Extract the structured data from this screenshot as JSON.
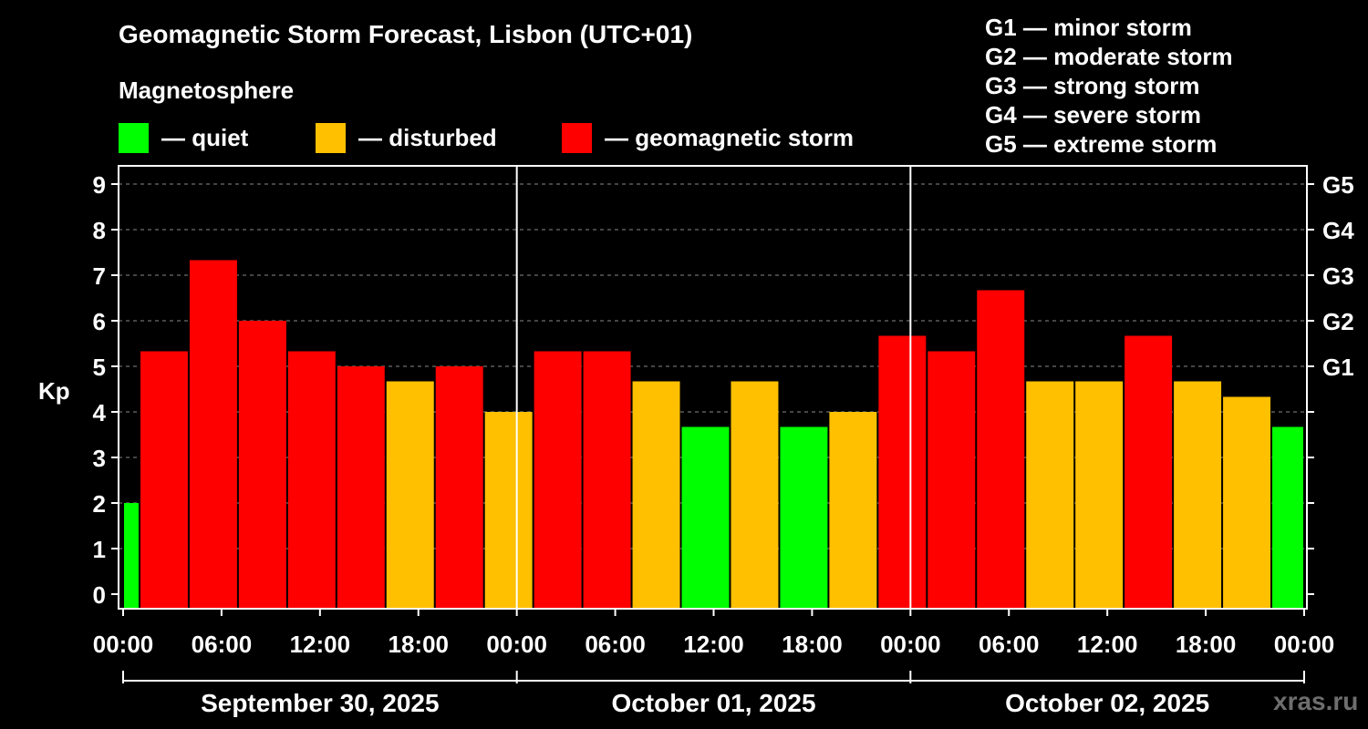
{
  "title": "Geomagnetic Storm Forecast, Lisbon (UTC+01)",
  "legend": {
    "heading": "Magnetosphere",
    "items": [
      {
        "label": "— quiet",
        "color": "#00ff00"
      },
      {
        "label": "— disturbed",
        "color": "#ffc000"
      },
      {
        "label": "— geomagnetic storm",
        "color": "#ff0000"
      }
    ]
  },
  "g_scale": [
    "G1 — minor storm",
    "G2 — moderate storm",
    "G3 — strong storm",
    "G4 — severe storm",
    "G5 — extreme storm"
  ],
  "watermark": "xras.ru",
  "chart_data": {
    "type": "bar",
    "ylabel": "Kp",
    "ylim": [
      0,
      9
    ],
    "y_ticks": [
      0,
      1,
      2,
      3,
      4,
      5,
      6,
      7,
      8,
      9
    ],
    "right_ticks": [
      {
        "value": 5,
        "label": "G1"
      },
      {
        "value": 6,
        "label": "G2"
      },
      {
        "value": 7,
        "label": "G3"
      },
      {
        "value": 8,
        "label": "G4"
      },
      {
        "value": 9,
        "label": "G5"
      }
    ],
    "grid": true,
    "x_tick_labels": [
      "00:00",
      "06:00",
      "12:00",
      "18:00",
      "00:00",
      "06:00",
      "12:00",
      "18:00",
      "00:00",
      "06:00",
      "12:00",
      "18:00",
      "00:00"
    ],
    "days": [
      "September 30, 2025",
      "October 01, 2025",
      "October 02, 2025"
    ],
    "colors": {
      "quiet": "#00ff00",
      "disturbed": "#ffc000",
      "storm": "#ff0000"
    },
    "bars": [
      {
        "start": "2025-09-30 00:00",
        "end": "2025-09-30 01:00",
        "kp": 2.0
      },
      {
        "start": "2025-09-30 01:00",
        "end": "2025-09-30 04:00",
        "kp": 5.33
      },
      {
        "start": "2025-09-30 04:00",
        "end": "2025-09-30 07:00",
        "kp": 7.33
      },
      {
        "start": "2025-09-30 07:00",
        "end": "2025-09-30 10:00",
        "kp": 6.0
      },
      {
        "start": "2025-09-30 10:00",
        "end": "2025-09-30 13:00",
        "kp": 5.33
      },
      {
        "start": "2025-09-30 13:00",
        "end": "2025-09-30 16:00",
        "kp": 5.0
      },
      {
        "start": "2025-09-30 16:00",
        "end": "2025-09-30 19:00",
        "kp": 4.67
      },
      {
        "start": "2025-09-30 19:00",
        "end": "2025-09-30 22:00",
        "kp": 5.0
      },
      {
        "start": "2025-09-30 22:00",
        "end": "2025-10-01 01:00",
        "kp": 4.0
      },
      {
        "start": "2025-10-01 01:00",
        "end": "2025-10-01 04:00",
        "kp": 5.33
      },
      {
        "start": "2025-10-01 04:00",
        "end": "2025-10-01 07:00",
        "kp": 5.33
      },
      {
        "start": "2025-10-01 07:00",
        "end": "2025-10-01 10:00",
        "kp": 4.67
      },
      {
        "start": "2025-10-01 10:00",
        "end": "2025-10-01 13:00",
        "kp": 3.67
      },
      {
        "start": "2025-10-01 13:00",
        "end": "2025-10-01 16:00",
        "kp": 4.67
      },
      {
        "start": "2025-10-01 16:00",
        "end": "2025-10-01 19:00",
        "kp": 3.67
      },
      {
        "start": "2025-10-01 19:00",
        "end": "2025-10-01 22:00",
        "kp": 4.0
      },
      {
        "start": "2025-10-01 22:00",
        "end": "2025-10-02 01:00",
        "kp": 5.67
      },
      {
        "start": "2025-10-02 01:00",
        "end": "2025-10-02 04:00",
        "kp": 5.33
      },
      {
        "start": "2025-10-02 04:00",
        "end": "2025-10-02 07:00",
        "kp": 6.67
      },
      {
        "start": "2025-10-02 07:00",
        "end": "2025-10-02 10:00",
        "kp": 4.67
      },
      {
        "start": "2025-10-02 10:00",
        "end": "2025-10-02 13:00",
        "kp": 4.67
      },
      {
        "start": "2025-10-02 13:00",
        "end": "2025-10-02 16:00",
        "kp": 5.67
      },
      {
        "start": "2025-10-02 16:00",
        "end": "2025-10-02 19:00",
        "kp": 4.67
      },
      {
        "start": "2025-10-02 19:00",
        "end": "2025-10-02 22:00",
        "kp": 4.33
      },
      {
        "start": "2025-10-02 22:00",
        "end": "2025-10-03 00:00",
        "kp": 3.67
      }
    ]
  }
}
